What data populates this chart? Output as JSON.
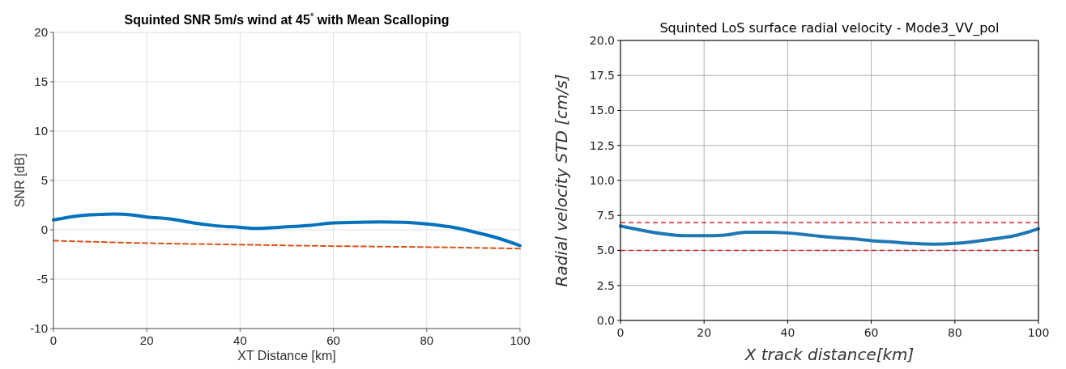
{
  "chart_data": [
    {
      "type": "line",
      "title": "Squinted SNR 5m/s wind at 45$^{°}$ with Mean Scalloping",
      "xlabel": "XT Distance [km]",
      "ylabel": "SNR [dB]",
      "xlim": [
        0,
        100
      ],
      "ylim": [
        -10,
        20
      ],
      "xticks": [
        0,
        20,
        40,
        60,
        80,
        100
      ],
      "yticks": [
        -10,
        -5,
        0,
        5,
        10,
        15,
        20
      ],
      "grid": true,
      "marker": "none",
      "series": [
        {
          "color": "#0072bd",
          "line_style": "solid",
          "x": [
            0,
            5,
            10,
            13,
            17,
            20,
            25,
            30,
            35,
            40,
            43,
            50,
            55,
            60,
            65,
            70,
            75,
            80,
            85,
            90,
            95,
            100
          ],
          "values": [
            1.0,
            1.4,
            1.55,
            1.6,
            1.5,
            1.3,
            1.1,
            0.7,
            0.4,
            0.25,
            0.15,
            0.3,
            0.45,
            0.7,
            0.75,
            0.8,
            0.75,
            0.6,
            0.3,
            -0.2,
            -0.8,
            -1.6
          ]
        },
        {
          "color": "#d95319",
          "line_style": "dashed",
          "x": [
            0,
            20,
            40,
            60,
            80,
            100
          ],
          "values": [
            -1.1,
            -1.35,
            -1.5,
            -1.65,
            -1.75,
            -1.9
          ]
        }
      ]
    },
    {
      "type": "line",
      "title": "Squinted LoS surface radial velocity - Mode3_VV_pol",
      "xlabel": "X track distance[km]",
      "ylabel": "Radial velocity STD [cm/s]",
      "xlim": [
        0,
        100
      ],
      "ylim": [
        0,
        20
      ],
      "xticks": [
        0,
        20,
        40,
        60,
        80,
        100
      ],
      "yticks": [
        {
          "value": 0,
          "label": "0.0"
        },
        {
          "value": 2.5,
          "label": "2.5"
        },
        {
          "value": 5,
          "label": "5.0"
        },
        {
          "value": 7.5,
          "label": "7.5"
        },
        {
          "value": 10,
          "label": "10.0"
        },
        {
          "value": 12.5,
          "label": "12.5"
        },
        {
          "value": 15,
          "label": "15.0"
        },
        {
          "value": 17.5,
          "label": "17.5"
        },
        {
          "value": 20,
          "label": "20.0"
        }
      ],
      "grid": true,
      "marker": "none",
      "series": [
        {
          "color": "#1f77b4",
          "line_style": "solid",
          "x": [
            0,
            5,
            10,
            15,
            20,
            25,
            30,
            35,
            40,
            45,
            50,
            55,
            60,
            65,
            70,
            75,
            80,
            85,
            90,
            95,
            100
          ],
          "values": [
            6.75,
            6.45,
            6.2,
            6.05,
            6.05,
            6.1,
            6.3,
            6.3,
            6.25,
            6.1,
            5.95,
            5.85,
            5.7,
            5.6,
            5.5,
            5.45,
            5.5,
            5.65,
            5.85,
            6.1,
            6.55
          ]
        }
      ],
      "ref_lines": [
        {
          "axis": "y",
          "value": 7,
          "color": "#d62728",
          "line_style": "dashed"
        },
        {
          "axis": "y",
          "value": 5,
          "color": "#d62728",
          "line_style": "dashed"
        }
      ]
    }
  ]
}
